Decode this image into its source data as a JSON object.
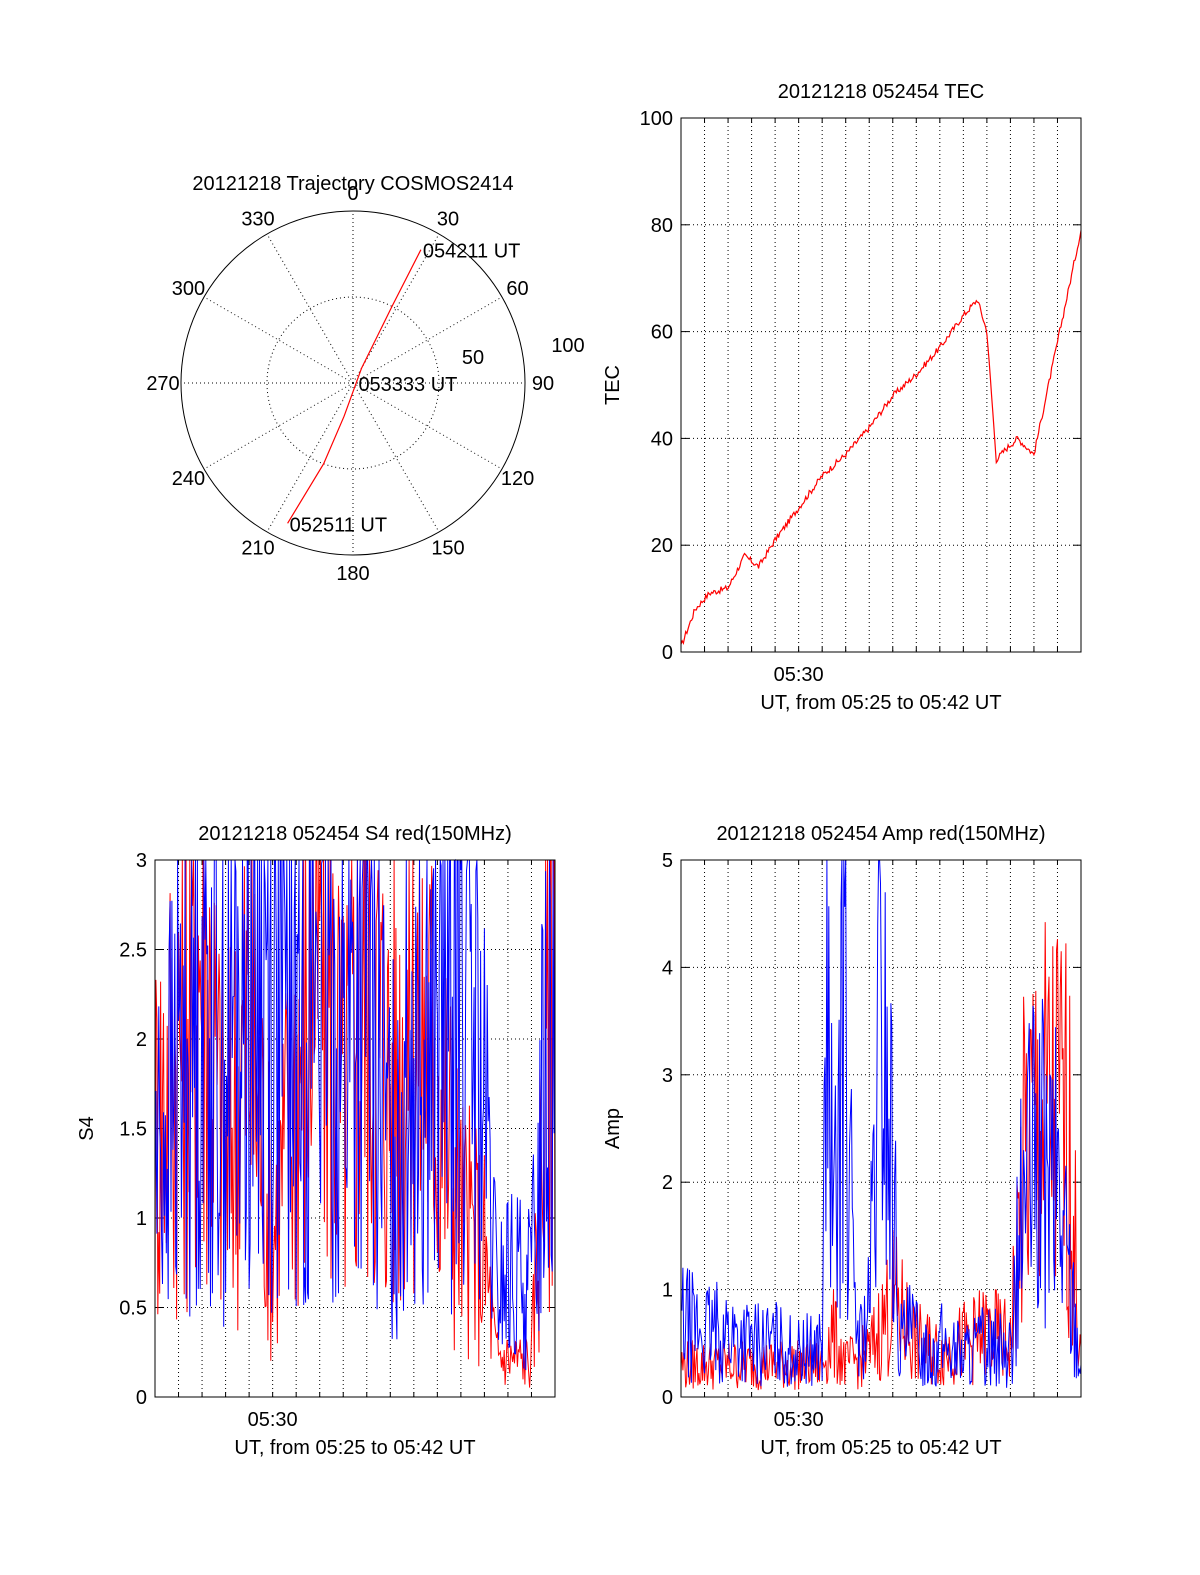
{
  "chart_data": [
    {
      "type": "polar",
      "title": "20121218 Trajectory COSMOS2414",
      "azimuth_labels": [
        "0",
        "30",
        "60",
        "90",
        "120",
        "150",
        "180",
        "210",
        "240",
        "270",
        "300",
        "330"
      ],
      "radius_labels": [
        "50",
        "100"
      ],
      "trajectory": {
        "color": "#ff0000",
        "points": [
          {
            "az": 205,
            "r": 90
          },
          {
            "az": 200,
            "r": 50
          },
          {
            "az": 195,
            "r": 20
          },
          {
            "az": 30,
            "r": 10
          },
          {
            "az": 27,
            "r": 50
          },
          {
            "az": 27,
            "r": 87
          }
        ]
      },
      "annotations": [
        {
          "text": "054211 UT",
          "az": 27,
          "r": 87
        },
        {
          "text": "053333 UT",
          "az": 90,
          "r": 2
        },
        {
          "text": "052511 UT",
          "az": 205,
          "r": 90
        }
      ]
    },
    {
      "type": "line",
      "title": "20121218 052454 TEC",
      "xlabel": "UT, from 05:25 to 05:42 UT",
      "ylabel": "TEC",
      "xlim": [
        0,
        17
      ],
      "ylim": [
        0,
        100
      ],
      "x_tick_label": "05:30",
      "y_ticks": [
        "0",
        "20",
        "40",
        "60",
        "80",
        "100"
      ],
      "series": [
        {
          "color": "#ff0000",
          "x": [
            0,
            0.6,
            1.2,
            2.0,
            2.7,
            3.3,
            4.0,
            5.0,
            6.0,
            7.0,
            8.0,
            9.0,
            10.0,
            11.0,
            12.0,
            12.6,
            13.0,
            13.4,
            13.8,
            14.3,
            15.0,
            16.0,
            17.0
          ],
          "y": [
            1,
            8,
            11,
            12,
            18,
            16,
            21,
            27,
            33,
            37,
            42,
            48,
            52,
            57,
            63,
            66,
            60,
            36,
            38,
            40,
            37,
            58,
            79
          ]
        }
      ]
    },
    {
      "type": "line",
      "title": "20121218 052454 S4 red(150MHz)",
      "xlabel": "UT, from 05:25 to 05:42 UT",
      "ylabel": "S4",
      "xlim": [
        0,
        17
      ],
      "ylim": [
        0,
        3
      ],
      "x_tick_label": "05:30",
      "y_ticks": [
        "0",
        "0.5",
        "1",
        "1.5",
        "2",
        "2.5",
        "3"
      ],
      "series": [
        {
          "color": "#ff0000",
          "x": [
            0,
            1,
            2,
            3,
            4,
            5,
            6,
            7,
            8,
            9,
            10,
            11,
            12,
            13,
            14,
            14.5,
            15,
            16,
            17
          ],
          "y": [
            1.5,
            2.0,
            2.6,
            1.3,
            2.1,
            0.9,
            1.8,
            2.7,
            1.6,
            2.4,
            1.7,
            2.2,
            1.8,
            1.0,
            0.8,
            0.23,
            0.22,
            0.21,
            2.9
          ]
        },
        {
          "color": "#0000ff",
          "x": [
            0,
            1,
            2,
            3,
            4,
            5,
            6,
            7,
            8,
            9,
            10,
            11,
            12,
            13,
            14,
            14.5,
            15,
            16,
            17
          ],
          "y": [
            1.3,
            1.8,
            2.4,
            1.9,
            2.5,
            2.3,
            2.0,
            2.6,
            1.9,
            2.4,
            1.3,
            2.2,
            2.0,
            2.5,
            1.5,
            0.6,
            0.65,
            0.62,
            2.9
          ]
        }
      ]
    },
    {
      "type": "line",
      "title": "20121218 052454 Amp red(150MHz)",
      "xlabel": "UT, from 05:25 to 05:42 UT",
      "ylabel": "Amp",
      "xlim": [
        0,
        17
      ],
      "ylim": [
        0,
        5
      ],
      "x_tick_label": "05:30",
      "y_ticks": [
        "0",
        "1",
        "2",
        "3",
        "4",
        "5"
      ],
      "series": [
        {
          "color": "#ff0000",
          "x": [
            0,
            2,
            4,
            6,
            6.4,
            7,
            8,
            9,
            10,
            11,
            12,
            13,
            14,
            14.6,
            15,
            16,
            16.5,
            17
          ],
          "y": [
            0.3,
            0.3,
            0.3,
            0.3,
            0.6,
            0.3,
            0.4,
            0.9,
            0.5,
            0.4,
            0.5,
            0.6,
            0.5,
            2.2,
            2.5,
            2.6,
            2.4,
            0.3
          ]
        },
        {
          "color": "#0000ff",
          "x": [
            0,
            1,
            2,
            3,
            4,
            5,
            6,
            6.2,
            6.5,
            7,
            7.3,
            7.6,
            8,
            8.5,
            9,
            9.3,
            9.8,
            10.5,
            11,
            12,
            13,
            14,
            14.6,
            15,
            16,
            17
          ],
          "y": [
            0.7,
            0.6,
            0.6,
            0.5,
            0.5,
            0.4,
            0.5,
            3.5,
            1.3,
            4.3,
            1.0,
            0.5,
            0.8,
            3.7,
            2.0,
            0.5,
            0.6,
            0.4,
            0.5,
            0.4,
            0.5,
            0.4,
            2.0,
            2.1,
            2.0,
            0.3
          ]
        }
      ]
    }
  ]
}
